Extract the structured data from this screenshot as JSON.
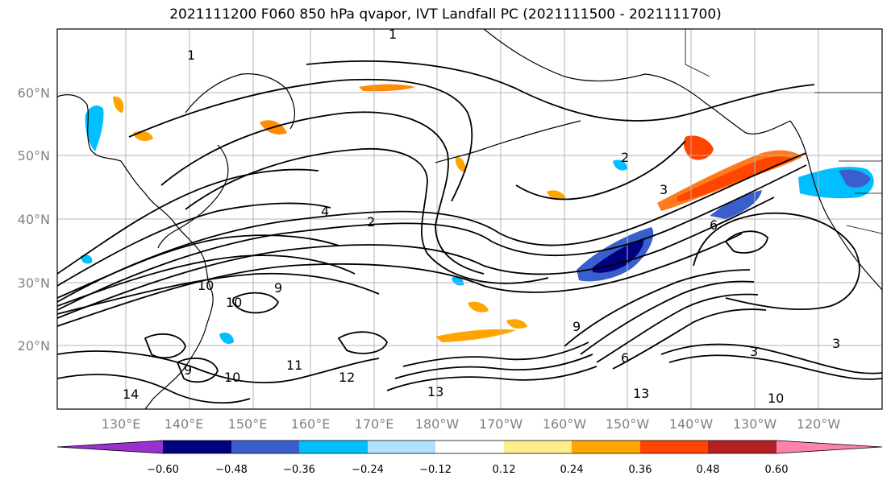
{
  "title": "2021111200 F060 850 hPa qvapor, IVT Landfall PC (2021111500 - 2021111700)",
  "map": {
    "lon_labels": [
      "130°E",
      "140°E",
      "150°E",
      "160°E",
      "170°E",
      "180°W",
      "170°W",
      "160°W",
      "150°W",
      "140°W",
      "130°W",
      "120°W"
    ],
    "lat_labels": [
      "60°N",
      "50°N",
      "40°N",
      "30°N",
      "20°N"
    ],
    "contour_labels": [
      "1",
      "1",
      "2",
      "2",
      "3",
      "4",
      "9",
      "10",
      "10",
      "11",
      "12",
      "13",
      "13",
      "14",
      "9",
      "10",
      "9",
      "6",
      "3",
      "6",
      "10",
      "3"
    ],
    "grid": true
  },
  "colorbar": {
    "ticks": [
      "−0.60",
      "−0.48",
      "−0.36",
      "−0.24",
      "−0.12",
      "0.12",
      "0.24",
      "0.36",
      "0.48",
      "0.60"
    ],
    "colors": [
      "#9932cc",
      "#000080",
      "#3a5fcd",
      "#00bfff",
      "#b0e2ff",
      "#ffffff",
      "#ffec8b",
      "#ffa500",
      "#ff4500",
      "#b22222",
      "#ff82ab"
    ]
  }
}
